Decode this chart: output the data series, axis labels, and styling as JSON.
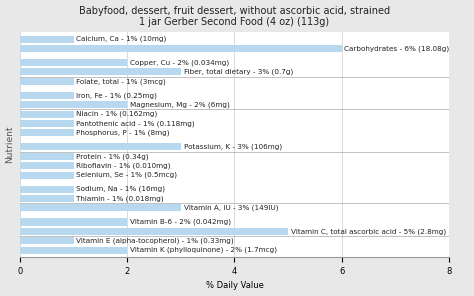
{
  "title": "Babyfood, dessert, fruit dessert, without ascorbic acid, strained\n1 jar Gerber Second Food (4 oz) (113g)",
  "xlabel": "% Daily Value",
  "ylabel": "Nutrient",
  "xlim": [
    0,
    8
  ],
  "xticks": [
    0,
    2,
    4,
    6,
    8
  ],
  "bar_color": "#b8d8f0",
  "bg_color": "#e8e8e8",
  "plot_bg_color": "#ffffff",
  "nutrients": [
    {
      "label": "Calcium, Ca - 1% (10mg)",
      "value": 1,
      "group": 0
    },
    {
      "label": "Carbohydrates - 6% (18.08g)",
      "value": 6,
      "group": 0
    },
    {
      "label": "Copper, Cu - 2% (0.034mg)",
      "value": 2,
      "group": 0
    },
    {
      "label": "Fiber, total dietary - 3% (0.7g)",
      "value": 3,
      "group": 0
    },
    {
      "label": "Folate, total - 1% (3mcg)",
      "value": 1,
      "group": 1
    },
    {
      "label": "Iron, Fe - 1% (0.25mg)",
      "value": 1,
      "group": 1
    },
    {
      "label": "Magnesium, Mg - 2% (6mg)",
      "value": 2,
      "group": 1
    },
    {
      "label": "Niacin - 1% (0.162mg)",
      "value": 1,
      "group": 2
    },
    {
      "label": "Pantothenic acid - 1% (0.118mg)",
      "value": 1,
      "group": 2
    },
    {
      "label": "Phosphorus, P - 1% (8mg)",
      "value": 1,
      "group": 2
    },
    {
      "label": "Potassium, K - 3% (106mg)",
      "value": 3,
      "group": 2
    },
    {
      "label": "Protein - 1% (0.34g)",
      "value": 1,
      "group": 3
    },
    {
      "label": "Riboflavin - 1% (0.010mg)",
      "value": 1,
      "group": 3
    },
    {
      "label": "Selenium, Se - 1% (0.5mcg)",
      "value": 1,
      "group": 3
    },
    {
      "label": "Sodium, Na - 1% (16mg)",
      "value": 1,
      "group": 3
    },
    {
      "label": "Thiamin - 1% (0.018mg)",
      "value": 1,
      "group": 3
    },
    {
      "label": "Vitamin A, IU - 3% (149IU)",
      "value": 3,
      "group": 4
    },
    {
      "label": "Vitamin B-6 - 2% (0.042mg)",
      "value": 2,
      "group": 4
    },
    {
      "label": "Vitamin C, total ascorbic acid - 5% (2.8mg)",
      "value": 5,
      "group": 4
    },
    {
      "label": "Vitamin E (alpha-tocopherol) - 1% (0.33mg)",
      "value": 1,
      "group": 5
    },
    {
      "label": "Vitamin K (phylloquinone) - 2% (1.7mcg)",
      "value": 2,
      "group": 5
    }
  ],
  "title_fontsize": 7.0,
  "label_fontsize": 5.2,
  "axis_fontsize": 6.0,
  "ylabel_fontsize": 6.5
}
